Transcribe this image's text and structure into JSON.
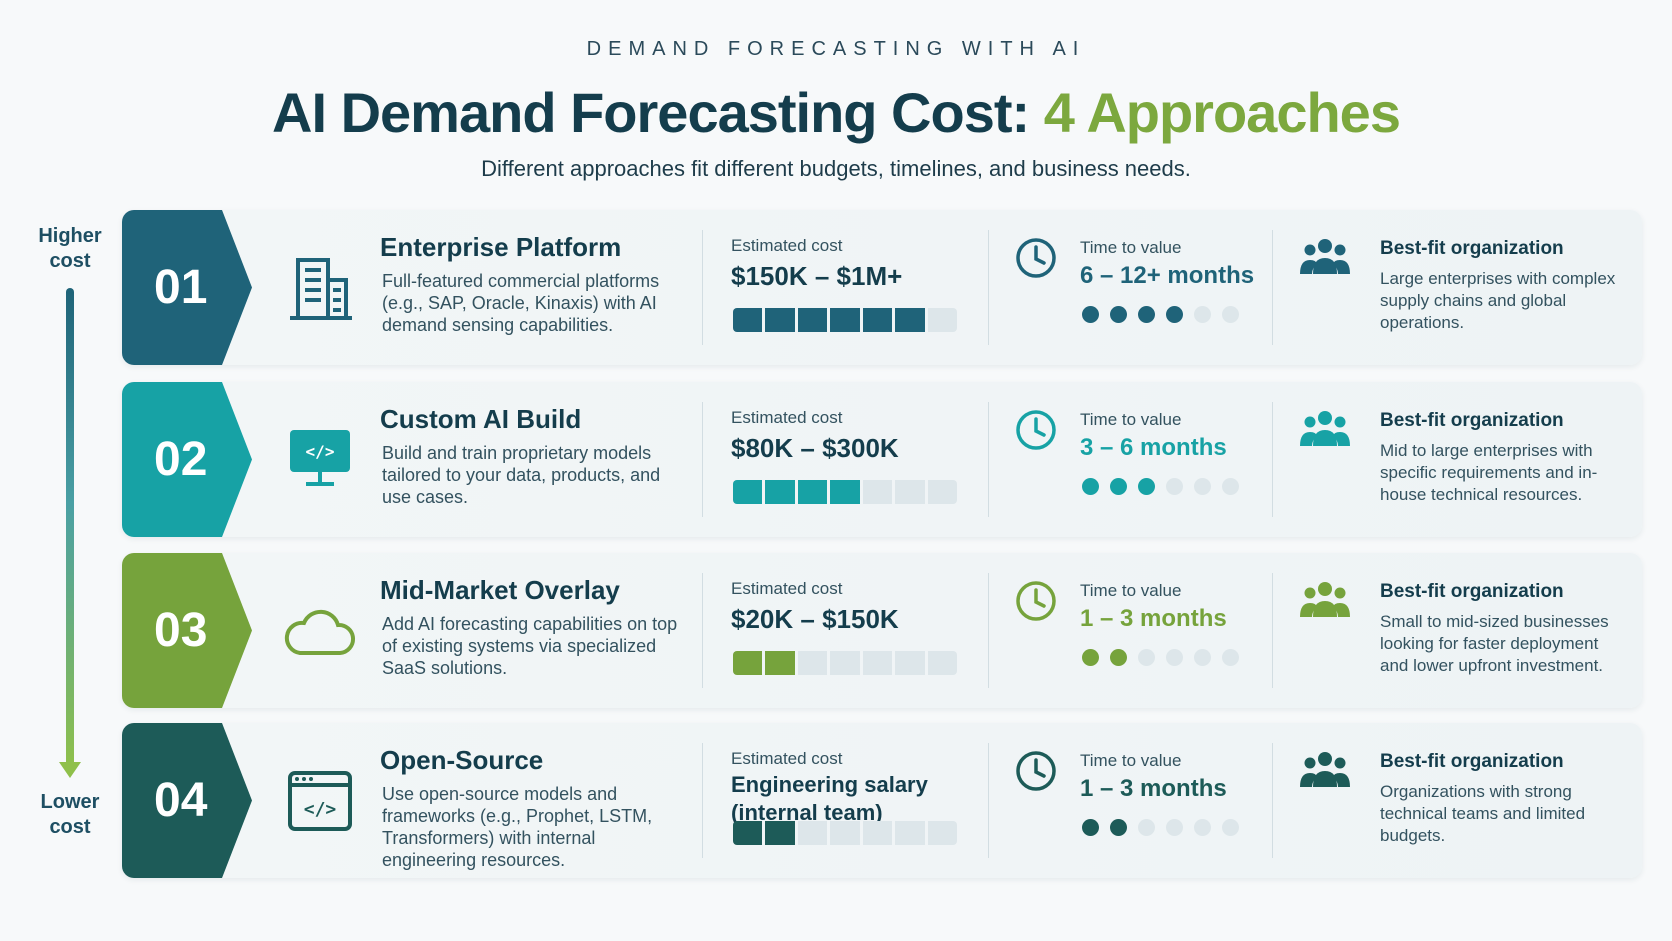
{
  "header": {
    "eyebrow": "DEMAND FORECASTING WITH AI",
    "title_main": "AI Demand Forecasting Cost:",
    "title_accent": "4 Approaches",
    "subtitle": "Different approaches fit different budgets, timelines, and business needs."
  },
  "axis": {
    "top_label": "Higher cost",
    "bottom_label": "Lower cost"
  },
  "labels": {
    "cost": "Estimated cost",
    "time": "Time to value",
    "fit": "Best-fit organization"
  },
  "approaches": [
    {
      "number": "01",
      "title": "Enterprise Platform",
      "description": "Full-featured commercial platforms (e.g., SAP, Oracle, Kinaxis) with AI demand sensing capabilities.",
      "icon": "building-icon",
      "cost": "$150K – $1M+",
      "cost_level": 6,
      "cost_total": 7,
      "time": "6 – 12+ months",
      "time_level": 4,
      "time_total": 6,
      "fit": "Large enterprises with complex supply chains and global operations.",
      "color": "#1f6379"
    },
    {
      "number": "02",
      "title": "Custom AI Build",
      "description": "Build and train proprietary models tailored to your data, products, and use cases.",
      "icon": "monitor-code-icon",
      "cost": "$80K – $300K",
      "cost_level": 4,
      "cost_total": 7,
      "time": "3 – 6 months",
      "time_level": 3,
      "time_total": 6,
      "fit": "Mid to large enterprises with specific requirements and in-house technical resources.",
      "color": "#17a2a5"
    },
    {
      "number": "03",
      "title": "Mid-Market Overlay",
      "description": "Add AI forecasting capabilities on top of existing systems via specialized SaaS solutions.",
      "icon": "cloud-icon",
      "cost": "$20K – $150K",
      "cost_level": 2,
      "cost_total": 7,
      "time": "1 – 3 months",
      "time_level": 2,
      "time_total": 6,
      "fit": "Small to mid-sized businesses looking for faster deployment and lower upfront investment.",
      "color": "#76a33c"
    },
    {
      "number": "04",
      "title": "Open-Source",
      "description": "Use open-source models and frameworks (e.g., Prophet, LSTM, Transformers) with internal engineering resources.",
      "icon": "browser-code-icon",
      "cost": "Engineering salary (internal team)",
      "cost_level": 2,
      "cost_total": 7,
      "time": "1 – 3 months",
      "time_level": 2,
      "time_total": 6,
      "fit": "Organizations with strong technical teams and limited budgets.",
      "color": "#1d5b58"
    }
  ],
  "colors": {
    "navy": "#143d4c",
    "green_accent": "#7ca83e",
    "empty_segment": "#dde6ea"
  }
}
